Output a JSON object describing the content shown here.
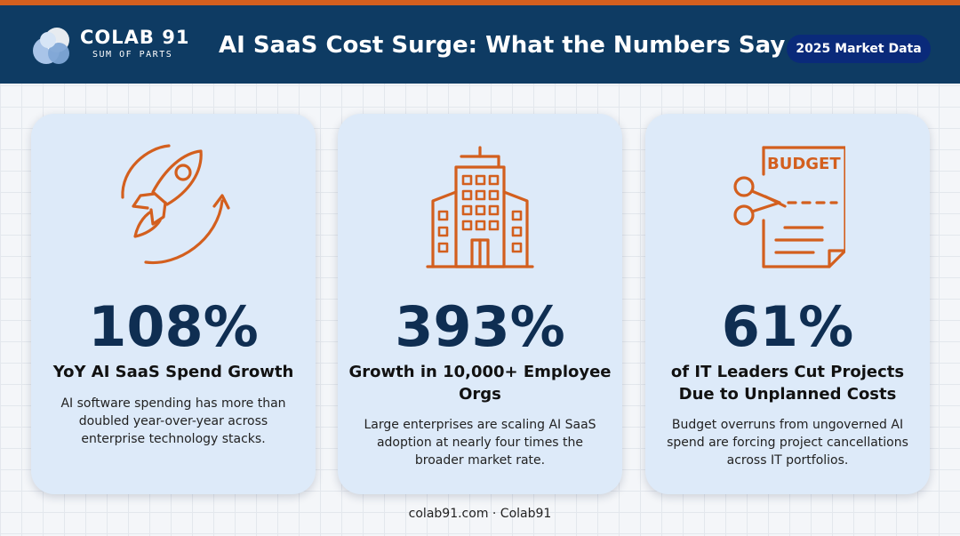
{
  "header": {
    "brand_name": "COLAB 91",
    "brand_tagline": "SUM OF PARTS",
    "title": "AI SaaS Cost Surge: What the Numbers Say",
    "badge": "2025 Market Data"
  },
  "cards": [
    {
      "icon": "rocket-icon",
      "stat": "108%",
      "title": "YoY AI SaaS Spend Growth",
      "description": "AI software spending has more than doubled year-over-year across enterprise technology stacks."
    },
    {
      "icon": "office-building-icon",
      "stat": "393%",
      "title": "Growth in 10,000+ Employee Orgs",
      "description": "Large enterprises are scaling AI SaaS adoption at nearly four times the broader market rate."
    },
    {
      "icon": "budget-cut-icon",
      "icon_text": "BUDGET",
      "stat": "61%",
      "title": "of IT Leaders Cut Projects Due to Unplanned Costs",
      "description": "Budget overruns from ungoverned AI spend are forcing project cancellations across IT portfolios."
    }
  ],
  "footer": "colab91.com · Colab91",
  "colors": {
    "header_bg": "#0e3b63",
    "accent": "#d35f1e",
    "stat": "#0f2e52",
    "card_bg": "#ddeaf9",
    "badge_bg": "#0a2a7a"
  }
}
